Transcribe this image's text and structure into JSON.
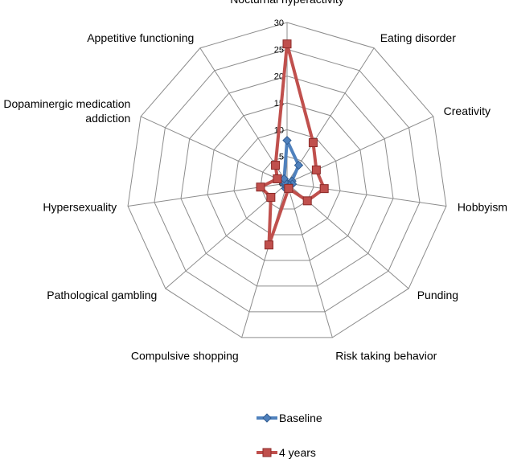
{
  "chart_data": {
    "type": "radar",
    "categories": [
      "Nocturnal hyperactivity",
      "Eating disorder",
      "Creativity",
      "Hobbyism",
      "Punding",
      "Risk taking behavior",
      [
        "Compulsive shopping"
      ],
      "Pathological gambling",
      "Hypersexuality",
      "Dopaminergic medication addiction",
      "Appetitive functioning"
    ],
    "category_labels": [
      [
        "Nocturnal hyperactivity"
      ],
      [
        "Eating disorder"
      ],
      [
        "Creativity"
      ],
      [
        "Hobbyism"
      ],
      [
        "Punding"
      ],
      [
        "Risk taking behavior"
      ],
      [
        "Compulsive shopping"
      ],
      [
        "Pathological gambling"
      ],
      [
        "Hypersexuality"
      ],
      [
        "Dopaminergic medication",
        "addiction"
      ],
      [
        "Appetitive functioning"
      ]
    ],
    "rlim": [
      0,
      30
    ],
    "ticks": [
      "0",
      "5",
      "10",
      "15",
      "20",
      "25",
      "30"
    ],
    "series": [
      {
        "name": "Baseline",
        "color": "#4f81bd",
        "marker": "diamond",
        "values": [
          8,
          4,
          1,
          1,
          0.5,
          0,
          1,
          0.5,
          0.5,
          0.5,
          1
        ]
      },
      {
        "name": "4 years",
        "color": "#c0504d",
        "marker": "square",
        "values": [
          26,
          9,
          6,
          7,
          5,
          1,
          12,
          4,
          5,
          2,
          4
        ]
      }
    ],
    "grid": true,
    "legend_position": "bottom"
  }
}
